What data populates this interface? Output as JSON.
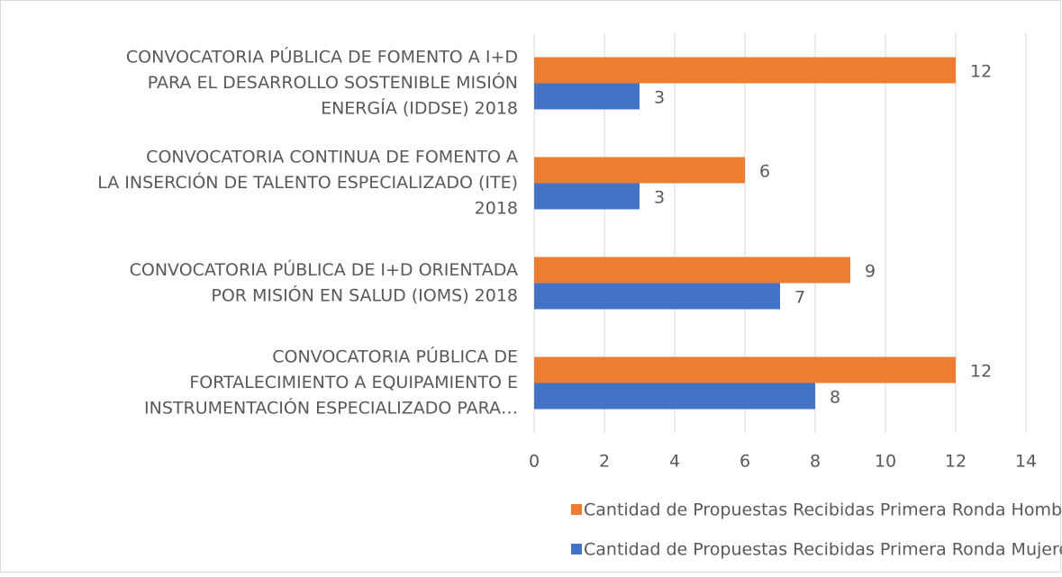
{
  "chart_data": {
    "type": "bar",
    "orientation": "horizontal",
    "categories": [
      [
        "CONVOCATORIA PÚBLICA DE FOMENTO A I+D",
        "PARA EL DESARROLLO SOSTENIBLE MISIÓN",
        "ENERGÍA (IDDSE) 2018"
      ],
      [
        "CONVOCATORIA CONTINUA DE FOMENTO A",
        "LA INSERCIÓN DE TALENTO ESPECIALIZADO (ITE)",
        "2018"
      ],
      [
        "CONVOCATORIA PÚBLICA DE I+D ORIENTADA",
        "POR MISIÓN EN SALUD (IOMS) 2018"
      ],
      [
        "CONVOCATORIA PÚBLICA DE",
        "FORTALECIMIENTO A EQUIPAMIENTO E",
        "INSTRUMENTACIÓN ESPECIALIZADO PARA…"
      ]
    ],
    "series": [
      {
        "name": "Cantidad de Propuestas Recibidas Primera Ronda Hombres",
        "color": "#ed7d31",
        "values": [
          12,
          6,
          9,
          12
        ]
      },
      {
        "name": "Cantidad de Propuestas Recibidas Primera Ronda Mujeres",
        "color": "#4472c4",
        "values": [
          3,
          3,
          7,
          8
        ]
      }
    ],
    "xlim": [
      0,
      14
    ],
    "xticks": [
      0,
      2,
      4,
      6,
      8,
      10,
      12,
      14
    ],
    "grid": true,
    "legend": "bottom"
  }
}
